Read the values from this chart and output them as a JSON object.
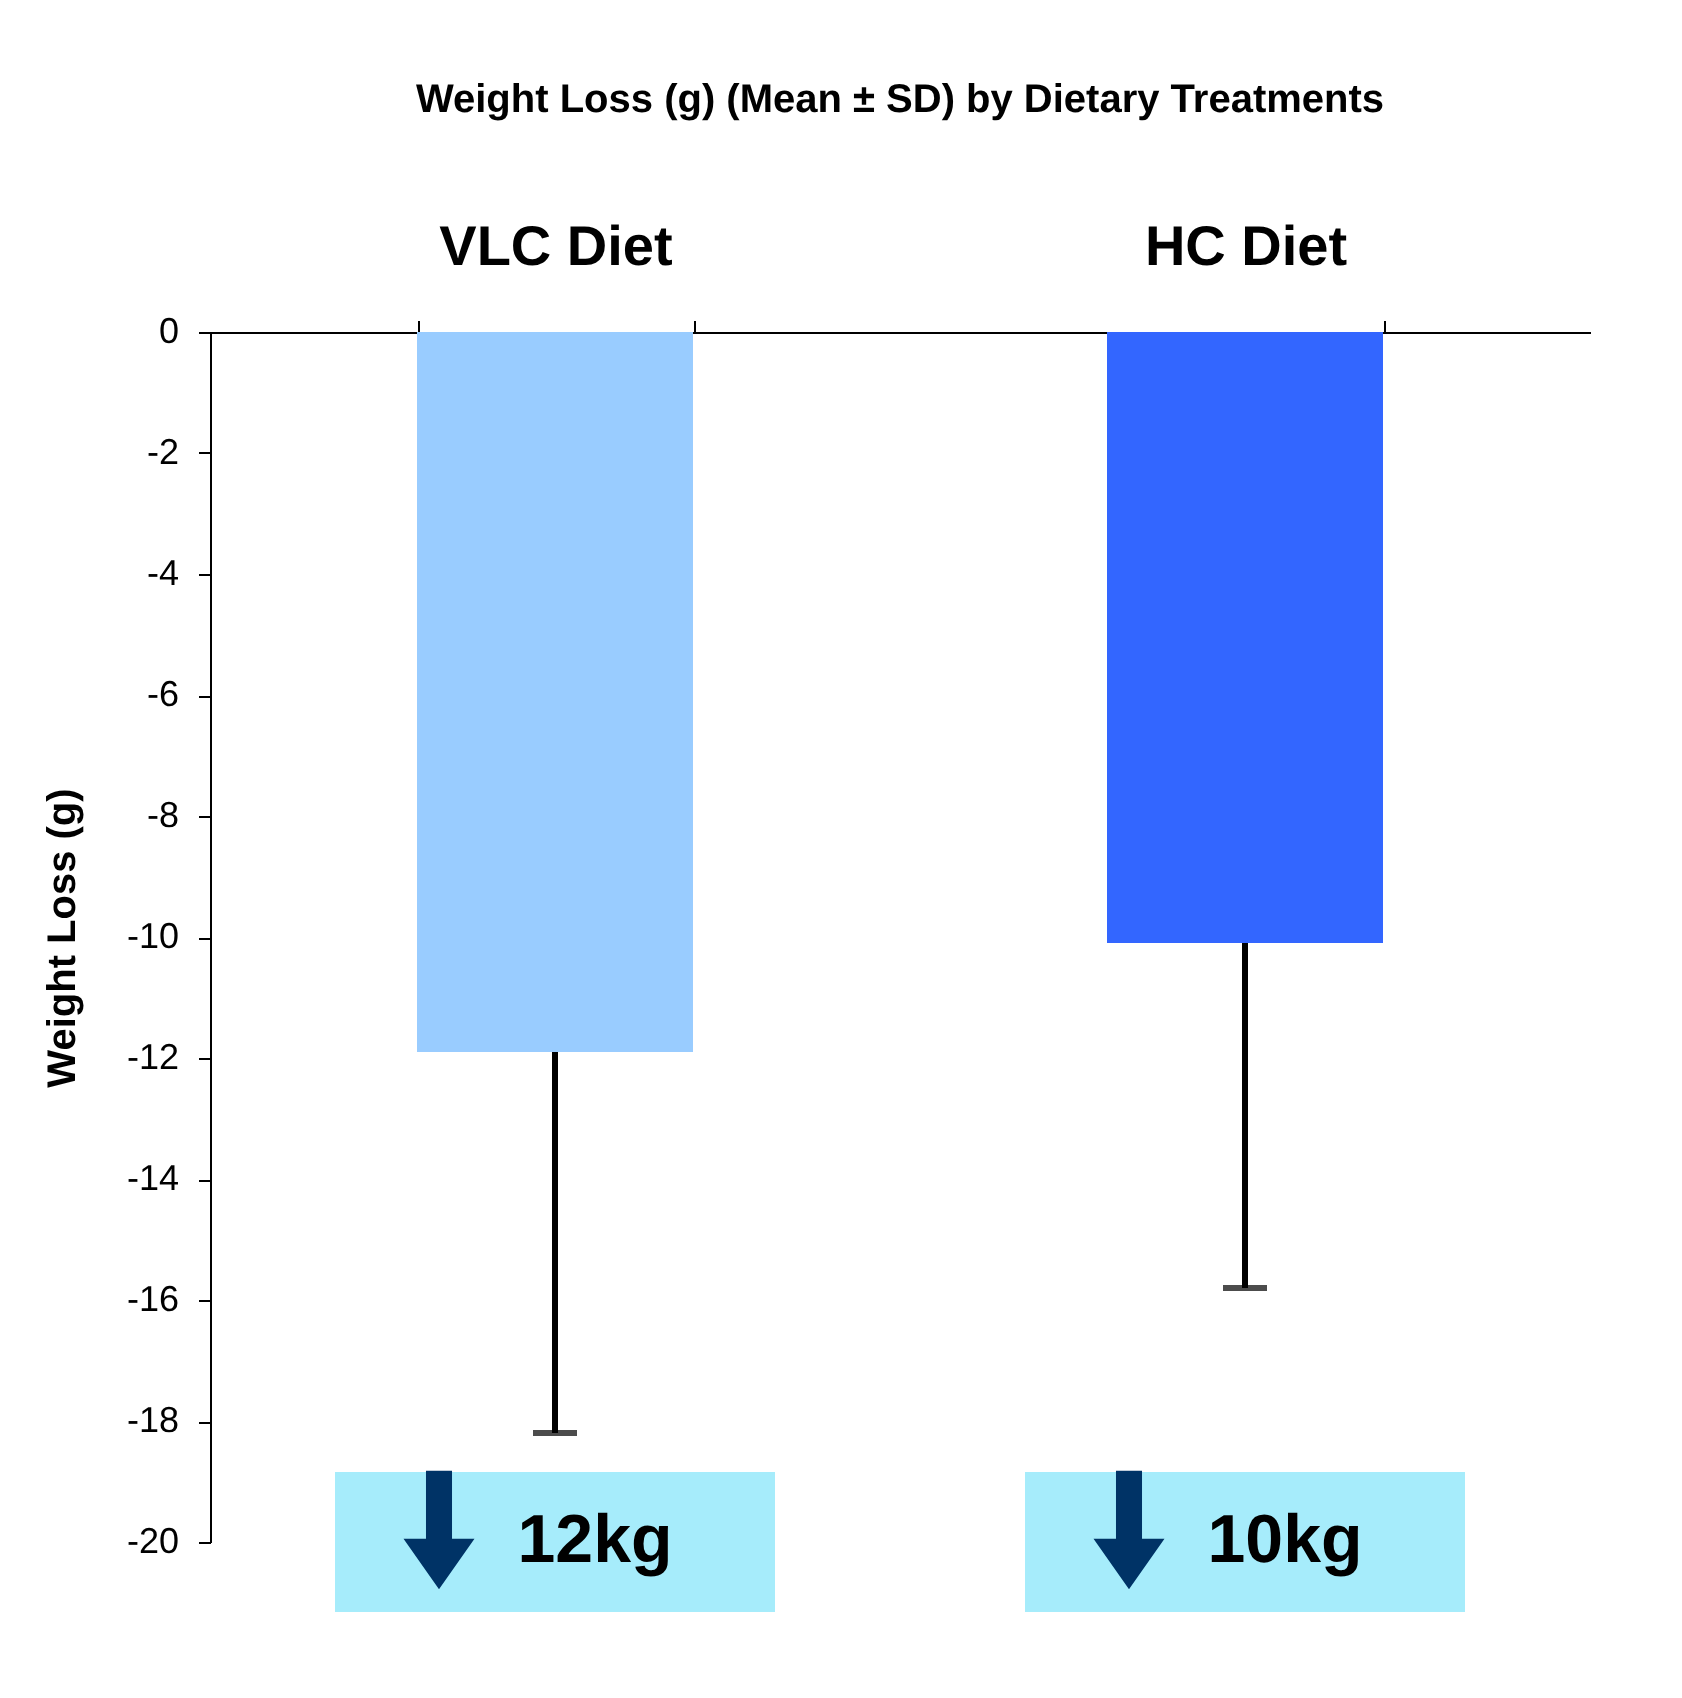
{
  "chart_data": {
    "type": "bar",
    "title": "Weight Loss (g) (Mean ± SD) by Dietary Treatments",
    "ylabel": "Weight Loss (g)",
    "categories": [
      "VLC Diet",
      "HC Diet"
    ],
    "values": [
      -11.9,
      -10.1
    ],
    "colors": [
      "#99ccff",
      "#3366ff"
    ],
    "errors": [
      [
        -18.2,
        -11.9
      ],
      [
        -15.8,
        -10.1
      ]
    ],
    "ylim": [
      -20,
      0
    ],
    "yticks": [
      0,
      -2,
      -4,
      -6,
      -8,
      -10,
      -12,
      -14,
      -16,
      -18,
      -20
    ],
    "grid": false,
    "annotations": [
      "12kg",
      "10kg"
    ]
  }
}
